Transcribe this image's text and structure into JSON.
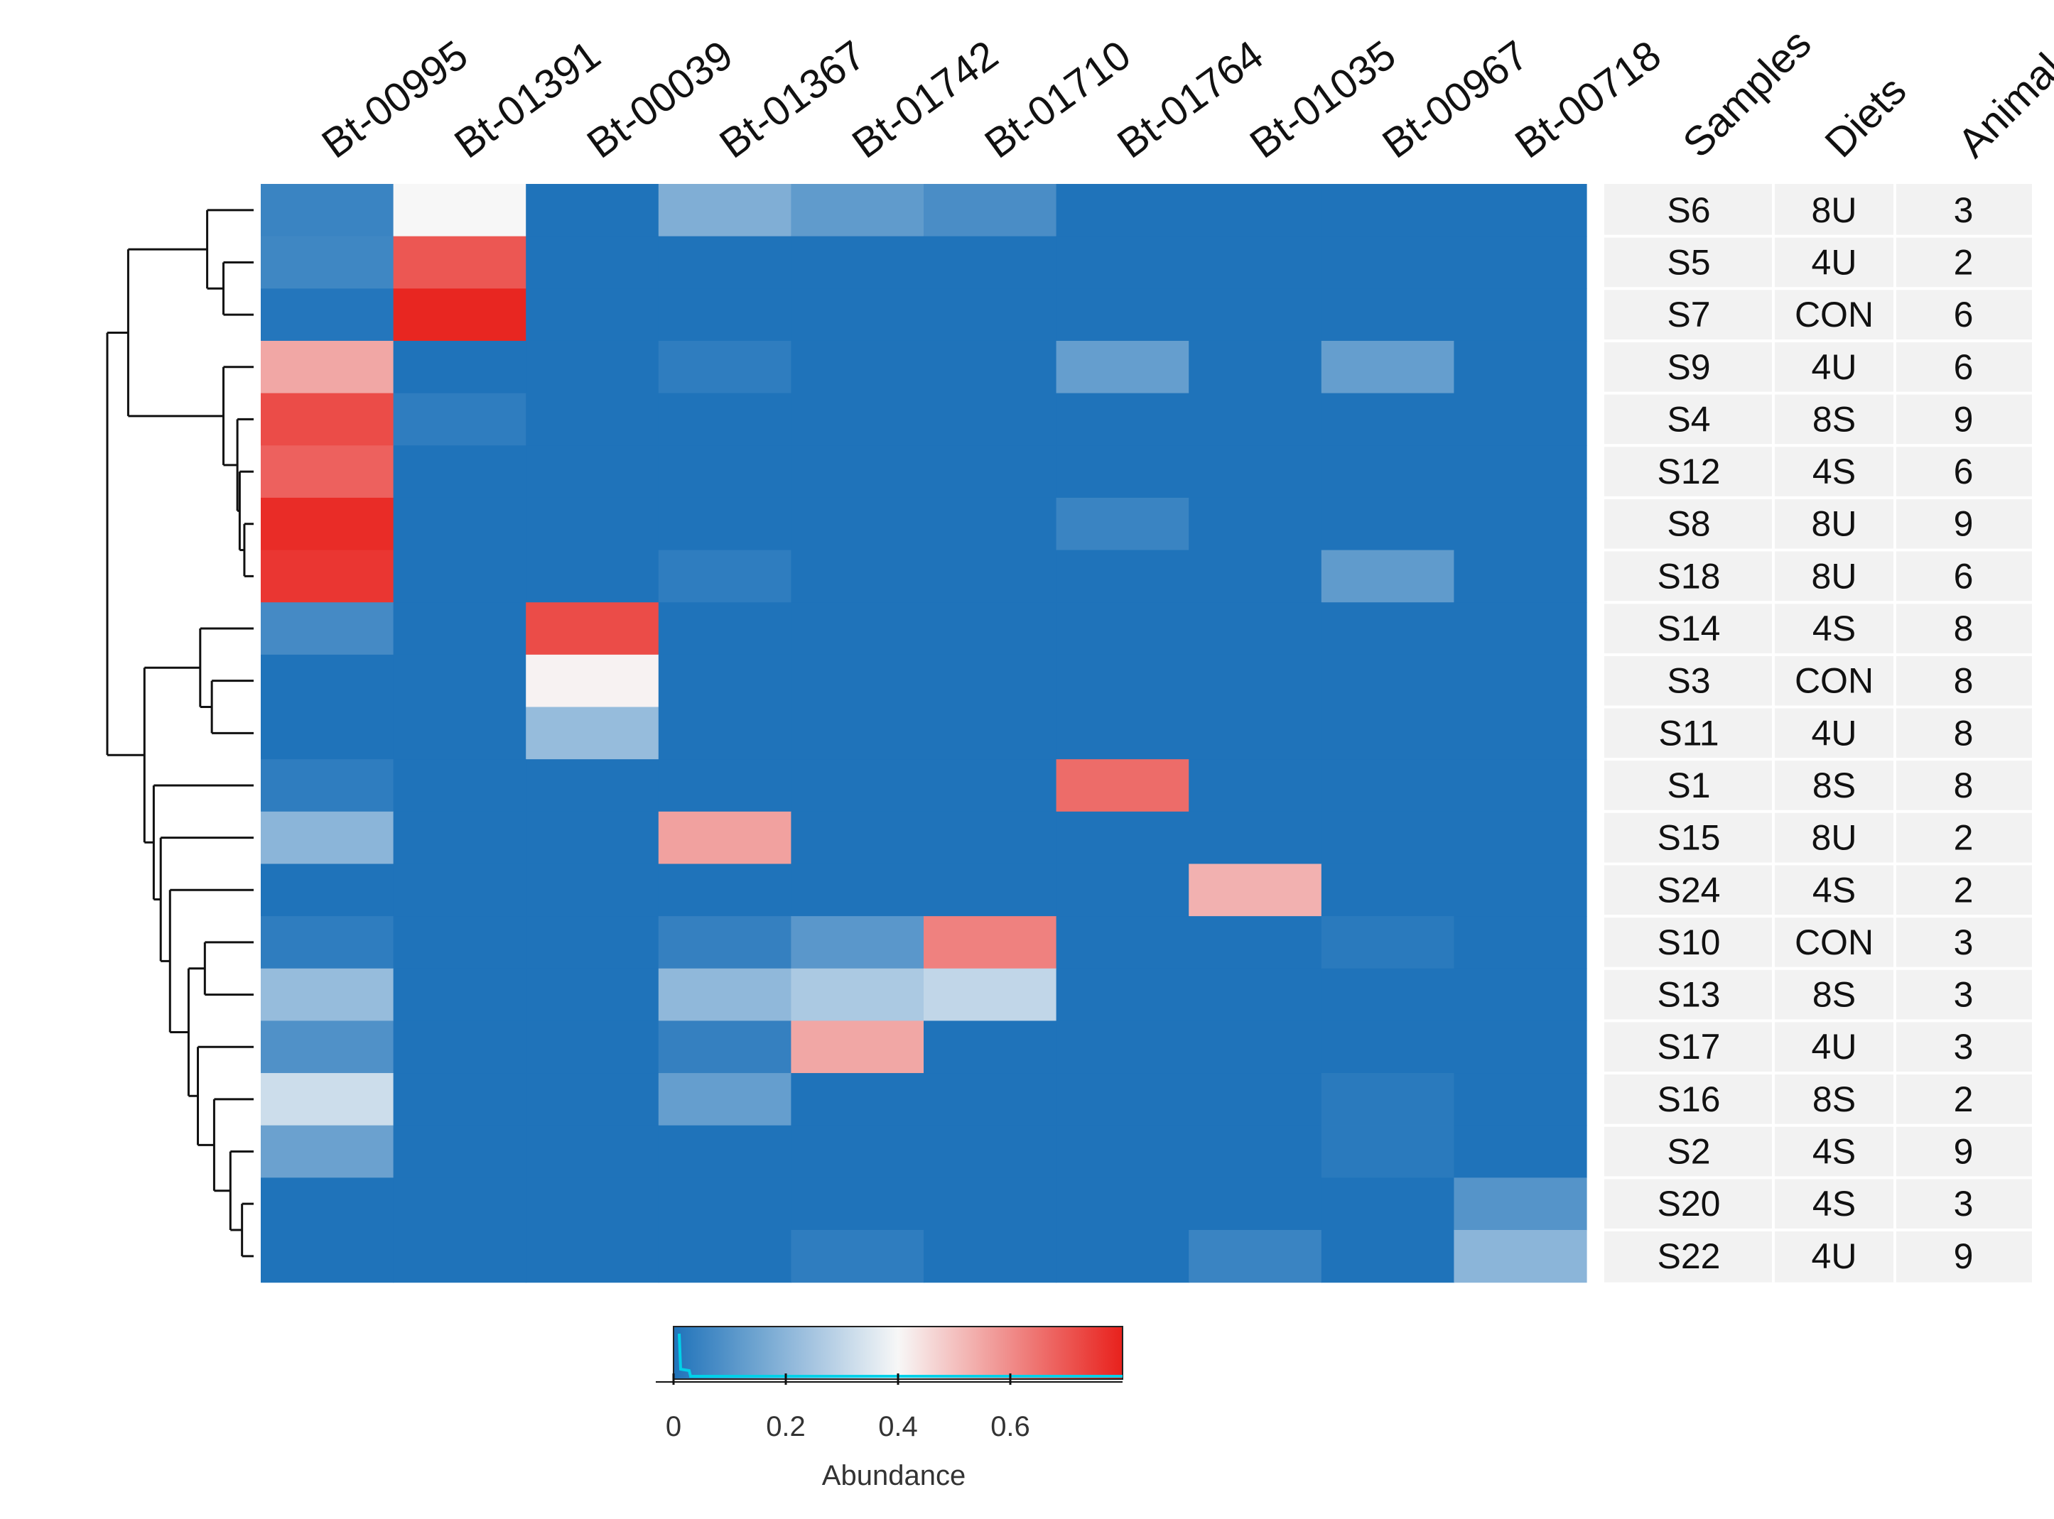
{
  "chart_data": {
    "type": "heatmap",
    "columns": [
      "Bt-00995",
      "Bt-01391",
      "Bt-00039",
      "Bt-01367",
      "Bt-01742",
      "Bt-01710",
      "Bt-01764",
      "Bt-01035",
      "Bt-00967",
      "Bt-00718"
    ],
    "annotation_headers": [
      "Samples",
      "Diets",
      "Animal"
    ],
    "rows": [
      {
        "sample": "S6",
        "diet": "8U",
        "animal": "3",
        "values": [
          0.05,
          0.4,
          0.0,
          0.18,
          0.12,
          0.08,
          0.0,
          0.0,
          0.0,
          0.0
        ]
      },
      {
        "sample": "S5",
        "diet": "4U",
        "animal": "2",
        "values": [
          0.06,
          0.7,
          0.0,
          0.0,
          0.0,
          0.0,
          0.0,
          0.0,
          0.0,
          0.0
        ]
      },
      {
        "sample": "S7",
        "diet": "CON",
        "animal": "6",
        "values": [
          0.01,
          0.79,
          0.0,
          0.0,
          0.0,
          0.0,
          0.0,
          0.0,
          0.0,
          0.0
        ]
      },
      {
        "sample": "S9",
        "diet": "4U",
        "animal": "6",
        "values": [
          0.55,
          0.0,
          0.0,
          0.03,
          0.0,
          0.0,
          0.13,
          0.0,
          0.13,
          0.0
        ]
      },
      {
        "sample": "S4",
        "diet": "8S",
        "animal": "9",
        "values": [
          0.72,
          0.03,
          0.0,
          0.0,
          0.0,
          0.0,
          0.0,
          0.0,
          0.0,
          0.0
        ]
      },
      {
        "sample": "S12",
        "diet": "4S",
        "animal": "6",
        "values": [
          0.68,
          0.0,
          0.0,
          0.0,
          0.0,
          0.0,
          0.0,
          0.0,
          0.0,
          0.0
        ]
      },
      {
        "sample": "S8",
        "diet": "8U",
        "animal": "9",
        "values": [
          0.78,
          0.0,
          0.0,
          0.0,
          0.0,
          0.0,
          0.05,
          0.0,
          0.0,
          0.0
        ]
      },
      {
        "sample": "S18",
        "diet": "8U",
        "animal": "6",
        "values": [
          0.76,
          0.0,
          0.0,
          0.03,
          0.0,
          0.0,
          0.0,
          0.0,
          0.12,
          0.0
        ]
      },
      {
        "sample": "S14",
        "diet": "4S",
        "animal": "8",
        "values": [
          0.07,
          0.0,
          0.72,
          0.0,
          0.0,
          0.0,
          0.0,
          0.0,
          0.0,
          0.0
        ]
      },
      {
        "sample": "S3",
        "diet": "CON",
        "animal": "8",
        "values": [
          0.0,
          0.0,
          0.41,
          0.0,
          0.0,
          0.0,
          0.0,
          0.0,
          0.0,
          0.0
        ]
      },
      {
        "sample": "S11",
        "diet": "4U",
        "animal": "8",
        "values": [
          0.0,
          0.0,
          0.22,
          0.0,
          0.0,
          0.0,
          0.0,
          0.0,
          0.0,
          0.0
        ]
      },
      {
        "sample": "S1",
        "diet": "8S",
        "animal": "8",
        "values": [
          0.03,
          0.0,
          0.0,
          0.0,
          0.0,
          0.0,
          0.66,
          0.0,
          0.0,
          0.0
        ]
      },
      {
        "sample": "S15",
        "diet": "8U",
        "animal": "2",
        "values": [
          0.2,
          0.0,
          0.0,
          0.56,
          0.0,
          0.0,
          0.0,
          0.0,
          0.0,
          0.0
        ]
      },
      {
        "sample": "S24",
        "diet": "4S",
        "animal": "2",
        "values": [
          0.0,
          0.0,
          0.0,
          0.0,
          0.0,
          0.0,
          0.0,
          0.53,
          0.0,
          0.0
        ]
      },
      {
        "sample": "S10",
        "diet": "CON",
        "animal": "3",
        "values": [
          0.03,
          0.0,
          0.0,
          0.04,
          0.11,
          0.62,
          0.0,
          0.0,
          0.02,
          0.0
        ]
      },
      {
        "sample": "S13",
        "diet": "8S",
        "animal": "3",
        "values": [
          0.22,
          0.0,
          0.0,
          0.21,
          0.26,
          0.3,
          0.0,
          0.0,
          0.0,
          0.0
        ]
      },
      {
        "sample": "S17",
        "diet": "4U",
        "animal": "3",
        "values": [
          0.09,
          0.0,
          0.0,
          0.04,
          0.55,
          0.0,
          0.0,
          0.0,
          0.0,
          0.0
        ]
      },
      {
        "sample": "S16",
        "diet": "8S",
        "animal": "2",
        "values": [
          0.32,
          0.0,
          0.0,
          0.13,
          0.0,
          0.0,
          0.0,
          0.0,
          0.02,
          0.0
        ]
      },
      {
        "sample": "S2",
        "diet": "4S",
        "animal": "9",
        "values": [
          0.14,
          0.0,
          0.0,
          0.0,
          0.0,
          0.0,
          0.0,
          0.0,
          0.02,
          0.0
        ]
      },
      {
        "sample": "S20",
        "diet": "4S",
        "animal": "3",
        "values": [
          0.0,
          0.0,
          0.0,
          0.0,
          0.0,
          0.0,
          0.0,
          0.0,
          0.0,
          0.1
        ]
      },
      {
        "sample": "S22",
        "diet": "4U",
        "animal": "9",
        "values": [
          0.0,
          0.0,
          0.0,
          0.0,
          0.03,
          0.0,
          0.0,
          0.05,
          0.0,
          0.2
        ]
      }
    ],
    "color_scale": {
      "domain": [
        0,
        0.4,
        0.8
      ],
      "colors": [
        "#1f73ba",
        "#f7f7f7",
        "#e8211c"
      ]
    },
    "colorbar": {
      "title": "Abundance",
      "ticks": [
        0,
        0.2,
        0.4,
        0.6
      ],
      "tick_labels": [
        "0",
        "0.2",
        "0.4",
        "0.6"
      ],
      "range": [
        0,
        0.8
      ]
    },
    "dendrogram": {
      "side": "left",
      "merges": [
        [
          1,
          2,
          0.28
        ],
        [
          0,
          1,
          0.65
        ],
        [
          6,
          7,
          0.02
        ],
        [
          5,
          8,
          0.06
        ],
        [
          4,
          9,
          0.1
        ],
        [
          3,
          10,
          0.41
        ],
        [
          11,
          12,
          0.9
        ],
        [
          9,
          10,
          0.08
        ],
        [
          8,
          14,
          0.39
        ],
        [
          19,
          20,
          0.05
        ],
        [
          18,
          16,
          0.15
        ],
        [
          17,
          17,
          0.23
        ],
        [
          16,
          18,
          0.35
        ],
        [
          15,
          19,
          0.48
        ],
        [
          14,
          20,
          0.53
        ],
        [
          13,
          21,
          0.56
        ],
        [
          12,
          22,
          0.68
        ],
        [
          11,
          23,
          0.77
        ],
        [
          15,
          24,
          0.82
        ],
        [
          25,
          26,
          0.86
        ],
        [
          13,
          27,
          1.0
        ]
      ]
    }
  }
}
